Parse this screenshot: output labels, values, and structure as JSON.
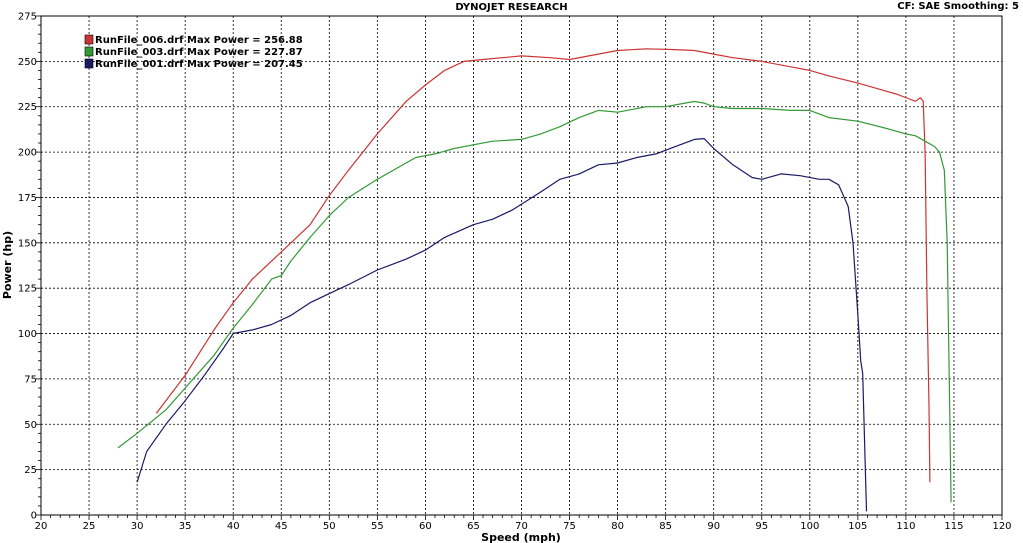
{
  "header": {
    "title": "DYNOJET RESEARCH",
    "cf_smoothing": "CF: SAE   Smoothing: 5"
  },
  "chart_data": {
    "type": "line",
    "title": "DYNOJET RESEARCH",
    "xlabel": "Speed (mph)",
    "ylabel": "Power (hp)",
    "xlim": [
      20,
      120
    ],
    "ylim": [
      0,
      275
    ],
    "x_ticks": [
      20,
      25,
      30,
      35,
      40,
      45,
      50,
      55,
      60,
      65,
      70,
      75,
      80,
      85,
      90,
      95,
      100,
      105,
      110,
      115,
      120
    ],
    "y_ticks": [
      0,
      25,
      50,
      75,
      100,
      125,
      150,
      175,
      200,
      225,
      250,
      275
    ],
    "grid": true,
    "legend_position": "top-left",
    "series": [
      {
        "name": "RunFile_006.drf Max Power = 256.88",
        "color": "#cc3333",
        "points": [
          [
            32,
            56
          ],
          [
            35,
            77
          ],
          [
            38,
            102
          ],
          [
            40,
            117
          ],
          [
            42,
            130
          ],
          [
            45,
            145
          ],
          [
            48,
            160
          ],
          [
            50,
            176
          ],
          [
            52,
            190
          ],
          [
            55,
            210
          ],
          [
            58,
            228
          ],
          [
            60,
            237
          ],
          [
            62,
            245
          ],
          [
            64,
            250
          ],
          [
            66,
            251
          ],
          [
            68,
            252
          ],
          [
            70,
            253
          ],
          [
            73,
            252
          ],
          [
            75,
            251
          ],
          [
            77,
            253
          ],
          [
            80,
            256
          ],
          [
            83,
            256.9
          ],
          [
            86,
            256.5
          ],
          [
            88,
            256
          ],
          [
            90,
            254
          ],
          [
            92,
            252
          ],
          [
            95,
            250
          ],
          [
            98,
            247
          ],
          [
            100,
            245
          ],
          [
            102,
            242
          ],
          [
            105,
            238
          ],
          [
            107,
            235
          ],
          [
            109,
            232
          ],
          [
            110.5,
            229
          ],
          [
            111,
            228
          ],
          [
            111.5,
            230
          ],
          [
            111.8,
            228
          ],
          [
            112,
            200
          ],
          [
            112.2,
            120
          ],
          [
            112.4,
            60
          ],
          [
            112.5,
            18
          ]
        ]
      },
      {
        "name": "RunFile_003.drf Max Power = 227.87",
        "color": "#339933",
        "points": [
          [
            28,
            37
          ],
          [
            30,
            45
          ],
          [
            33,
            58
          ],
          [
            35,
            70
          ],
          [
            38,
            88
          ],
          [
            40,
            103
          ],
          [
            42,
            116
          ],
          [
            43,
            123
          ],
          [
            44,
            130
          ],
          [
            45,
            132
          ],
          [
            46,
            140
          ],
          [
            48,
            153
          ],
          [
            50,
            165
          ],
          [
            52,
            175
          ],
          [
            55,
            185
          ],
          [
            57,
            191
          ],
          [
            59,
            197
          ],
          [
            61,
            199
          ],
          [
            63,
            202
          ],
          [
            65,
            204
          ],
          [
            67,
            206
          ],
          [
            70,
            207
          ],
          [
            72,
            210
          ],
          [
            74,
            214
          ],
          [
            76,
            219
          ],
          [
            78,
            223
          ],
          [
            80,
            222
          ],
          [
            83,
            225
          ],
          [
            85,
            225
          ],
          [
            87,
            227
          ],
          [
            88,
            227.9
          ],
          [
            89,
            227
          ],
          [
            90,
            225
          ],
          [
            92,
            224
          ],
          [
            95,
            224
          ],
          [
            98,
            223
          ],
          [
            100,
            223
          ],
          [
            102,
            219
          ],
          [
            105,
            217
          ],
          [
            108,
            213
          ],
          [
            110,
            210
          ],
          [
            111,
            209
          ],
          [
            112,
            206
          ],
          [
            113,
            203
          ],
          [
            113.5,
            200
          ],
          [
            114,
            190
          ],
          [
            114.3,
            150
          ],
          [
            114.5,
            80
          ],
          [
            114.7,
            7
          ]
        ]
      },
      {
        "name": "RunFile_001.drf Max Power = 207.45",
        "color": "#1a1a66",
        "points": [
          [
            30,
            18
          ],
          [
            31,
            35
          ],
          [
            33,
            50
          ],
          [
            35,
            63
          ],
          [
            37,
            77
          ],
          [
            39,
            92
          ],
          [
            40,
            100
          ],
          [
            42,
            102
          ],
          [
            44,
            105
          ],
          [
            46,
            110
          ],
          [
            48,
            117
          ],
          [
            50,
            122
          ],
          [
            52,
            127
          ],
          [
            55,
            135
          ],
          [
            58,
            141
          ],
          [
            60,
            146
          ],
          [
            62,
            153
          ],
          [
            65,
            160
          ],
          [
            67,
            163
          ],
          [
            69,
            168
          ],
          [
            72,
            178
          ],
          [
            74,
            185
          ],
          [
            76,
            188
          ],
          [
            78,
            193
          ],
          [
            80,
            194
          ],
          [
            82,
            197
          ],
          [
            84,
            199
          ],
          [
            86,
            203
          ],
          [
            88,
            207
          ],
          [
            89,
            207.45
          ],
          [
            90,
            202
          ],
          [
            92,
            193
          ],
          [
            94,
            186
          ],
          [
            95,
            185
          ],
          [
            97,
            188
          ],
          [
            99,
            187
          ],
          [
            101,
            185
          ],
          [
            102,
            185
          ],
          [
            103,
            182
          ],
          [
            104,
            170
          ],
          [
            104.5,
            150
          ],
          [
            105,
            110
          ],
          [
            105.3,
            85
          ],
          [
            105.5,
            78
          ],
          [
            105.7,
            40
          ],
          [
            105.9,
            2
          ]
        ]
      }
    ]
  }
}
